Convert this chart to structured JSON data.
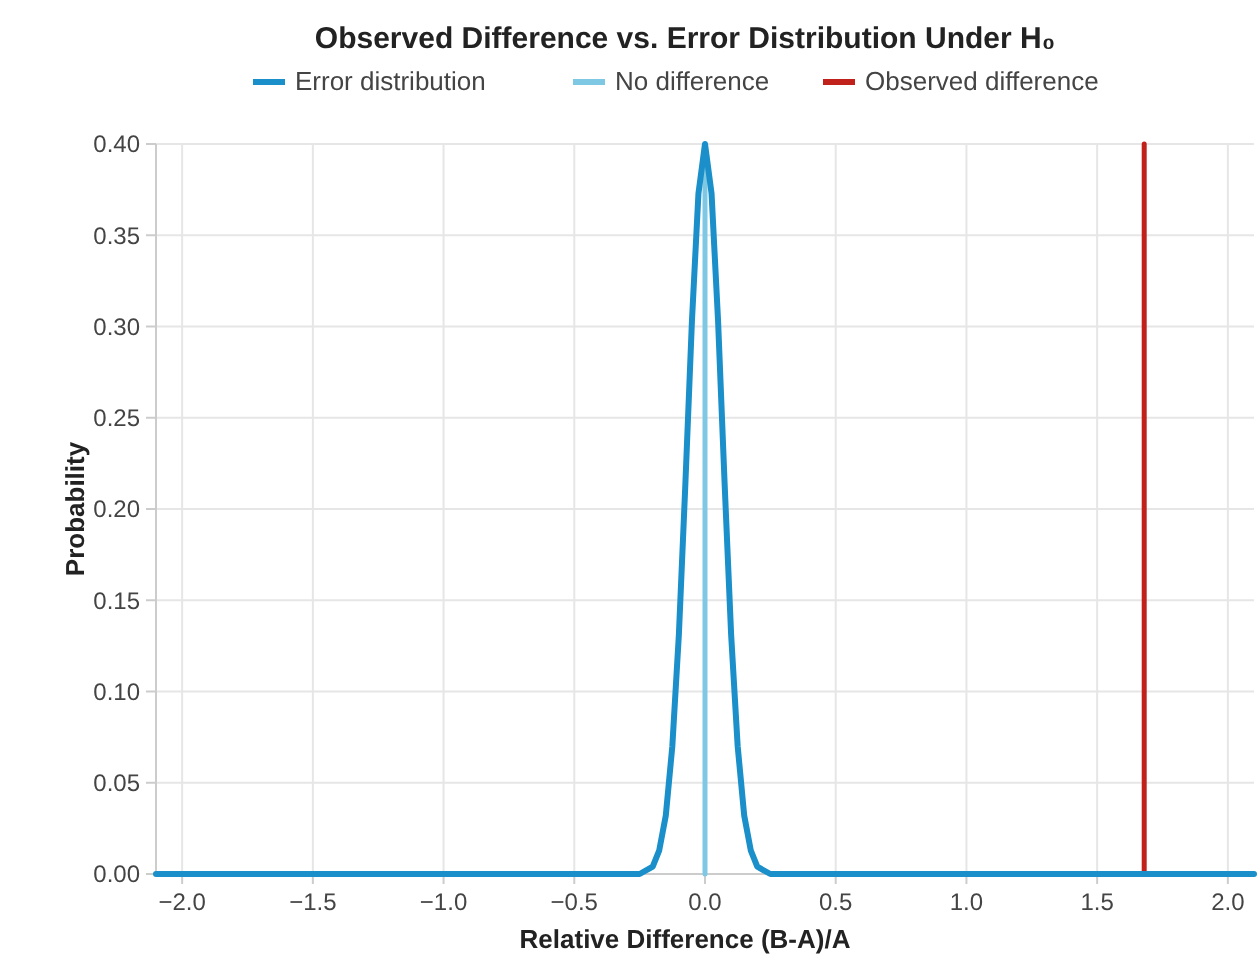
{
  "chart_data": {
    "type": "line",
    "title": "Observed Difference vs. Error Distribution Under H₀",
    "xlabel": "Relative Difference (B-A)/A",
    "ylabel": "Probability",
    "xlim": [
      -2.1,
      2.1
    ],
    "xticks": [
      {
        "value": -2,
        "label": "−2.0"
      },
      {
        "value": -1.5,
        "label": "−1.5"
      },
      {
        "value": -1,
        "label": "−1.0"
      },
      {
        "value": -0.5,
        "label": "−0.5"
      },
      {
        "value": 0,
        "label": "0.0"
      },
      {
        "value": 0.5,
        "label": "0.5"
      },
      {
        "value": 1,
        "label": "1.0"
      },
      {
        "value": 1.5,
        "label": "1.5"
      },
      {
        "value": 2,
        "label": "2.0"
      }
    ],
    "ylim": [
      0,
      0.4
    ],
    "yticks": [
      {
        "value": 0,
        "label": "0.00"
      },
      {
        "value": 0.05,
        "label": "0.05"
      },
      {
        "value": 0.1,
        "label": "0.10"
      },
      {
        "value": 0.15,
        "label": "0.15"
      },
      {
        "value": 0.2,
        "label": "0.20"
      },
      {
        "value": 0.25,
        "label": "0.25"
      },
      {
        "value": 0.3,
        "label": "0.30"
      },
      {
        "value": 0.35,
        "label": "0.35"
      },
      {
        "value": 0.4,
        "label": "0.40"
      }
    ],
    "grid": true,
    "legend": "top",
    "marker": "none",
    "series": [
      {
        "name": "Error distribution",
        "color": "#1a8fc9",
        "x": [
          -2.1,
          -0.25,
          -0.2,
          -0.175,
          -0.15,
          -0.125,
          -0.1,
          -0.075,
          -0.05,
          -0.025,
          0,
          0.025,
          0.05,
          0.075,
          0.1,
          0.125,
          0.15,
          0.175,
          0.2,
          0.25,
          2.1
        ],
        "values": [
          0,
          0,
          0.004,
          0.013,
          0.032,
          0.07,
          0.131,
          0.214,
          0.303,
          0.373,
          0.4,
          0.373,
          0.303,
          0.214,
          0.131,
          0.07,
          0.032,
          0.013,
          0.004,
          0,
          0
        ]
      },
      {
        "name": "No difference",
        "color": "#7ec8e3",
        "x": [
          0,
          0
        ],
        "values": [
          0,
          0.4
        ]
      },
      {
        "name": "Observed difference",
        "color": "#c0221b",
        "x": [
          1.68,
          1.68
        ],
        "values": [
          0,
          0.4
        ]
      }
    ]
  }
}
